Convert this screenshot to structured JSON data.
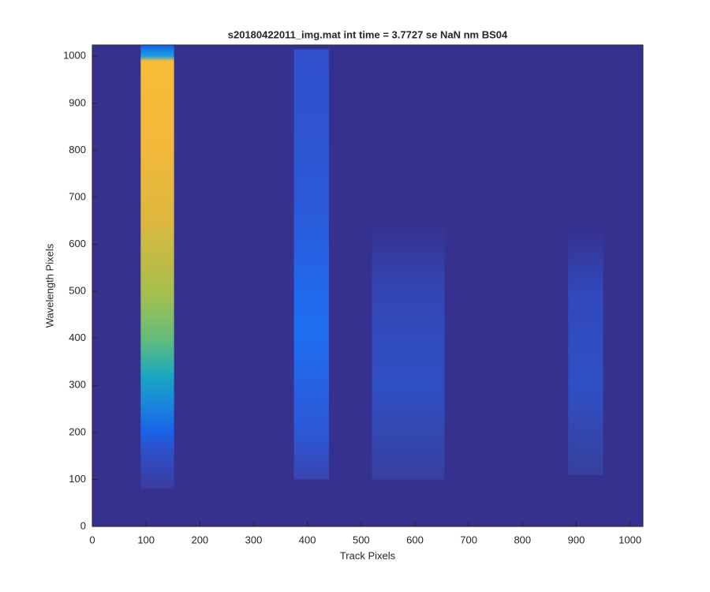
{
  "chart_data": {
    "type": "image",
    "title": "s20180422011_img.mat int time = 3.7727 se  NaN nm BS04",
    "x_label": "Track Pixels",
    "y_label": "Wavelength Pixels",
    "xlim": [
      0,
      1024
    ],
    "ylim": [
      0,
      1024
    ],
    "xticks": [
      0,
      100,
      200,
      300,
      400,
      500,
      600,
      700,
      800,
      900,
      1000
    ],
    "yticks": [
      0,
      100,
      200,
      300,
      400,
      500,
      600,
      700,
      800,
      900,
      1000
    ],
    "background": "#36318e",
    "tracks": [
      {
        "x": [
          90,
          152
        ],
        "y": [
          80,
          1024
        ],
        "stops": [
          [
            80,
            "#3a3b9e"
          ],
          [
            160,
            "#2f4fc8"
          ],
          [
            200,
            "#1a62e6"
          ],
          [
            260,
            "#1a86dc"
          ],
          [
            320,
            "#1aa8c0"
          ],
          [
            400,
            "#64bc78"
          ],
          [
            500,
            "#a8be4c"
          ],
          [
            650,
            "#dcb83e"
          ],
          [
            800,
            "#f2b83a"
          ],
          [
            990,
            "#f8bc38"
          ],
          [
            1000,
            "#1aa0e0"
          ],
          [
            1024,
            "#1060e6"
          ]
        ]
      },
      {
        "x": [
          375,
          440
        ],
        "y": [
          100,
          1015
        ],
        "stops": [
          [
            100,
            "#3a44b0"
          ],
          [
            200,
            "#2c58d6"
          ],
          [
            420,
            "#1d6ef2"
          ],
          [
            700,
            "#2c58d6"
          ],
          [
            1015,
            "#3050cc"
          ]
        ]
      },
      {
        "x": [
          520,
          655
        ],
        "y": [
          100,
          640
        ],
        "stops": [
          [
            100,
            "#37409e"
          ],
          [
            300,
            "#2f4fc4"
          ],
          [
            500,
            "#3346b4"
          ],
          [
            640,
            "#36338f"
          ]
        ]
      },
      {
        "x": [
          885,
          950
        ],
        "y": [
          110,
          625
        ],
        "stops": [
          [
            110,
            "#37409e"
          ],
          [
            300,
            "#2f4fc4"
          ],
          [
            500,
            "#3148bc"
          ],
          [
            625,
            "#36338f"
          ]
        ]
      }
    ]
  }
}
